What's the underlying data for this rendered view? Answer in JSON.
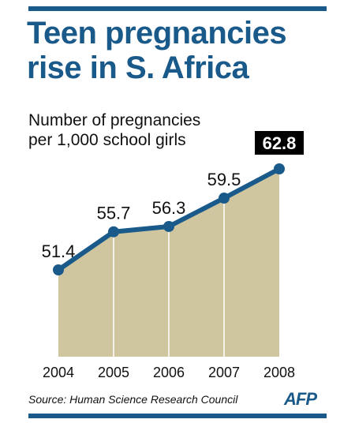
{
  "header": {
    "title_line1": "Teen pregnancies",
    "title_line2": "rise in S. Africa"
  },
  "chart_data": {
    "type": "area",
    "title": "Teen pregnancies rise in S. Africa",
    "subtitle_line1": "Number of pregnancies",
    "subtitle_line2": "per 1,000 school girls",
    "categories": [
      "2004",
      "2005",
      "2006",
      "2007",
      "2008"
    ],
    "values": [
      51.4,
      55.7,
      56.3,
      59.5,
      62.8
    ],
    "value_labels": [
      "51.4",
      "55.7",
      "56.3",
      "59.5",
      "62.8"
    ],
    "highlight_index": 4,
    "ylim": [
      40,
      65
    ],
    "grid": false,
    "colors": {
      "fill": "#cfc6a0",
      "line": "#1a5a8a",
      "highlight_bg": "#000000",
      "highlight_text": "#ffffff"
    }
  },
  "footer": {
    "source": "Source: Human Science Research Council",
    "logo": "AFP"
  }
}
